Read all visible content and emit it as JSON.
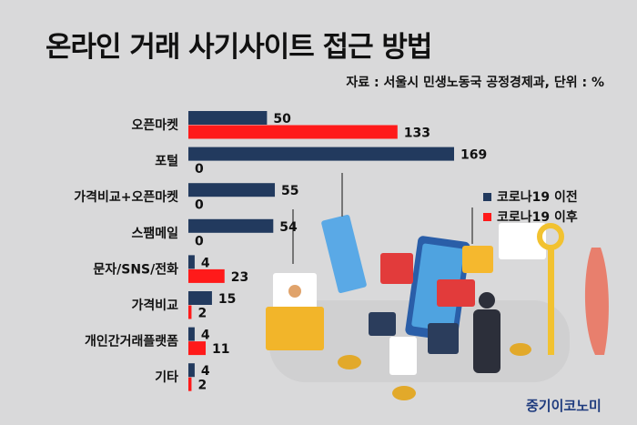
{
  "title": "온라인 거래 사기사이트 접근 방법",
  "source": "자료 : 서울시 민생노동국 공정경제과, 단위 : %",
  "brand": "중기이코노미",
  "colors": {
    "before": "#223a5e",
    "after": "#ff1a1a"
  },
  "chart_data": {
    "type": "bar",
    "orientation": "horizontal",
    "categories": [
      "오픈마켓",
      "포털",
      "가격비교+오픈마켓",
      "스팸메일",
      "문자/SNS/전화",
      "가격비교",
      "개인간거래플랫폼",
      "기타"
    ],
    "series": [
      {
        "name": "코로나19 이전",
        "values": [
          50,
          169,
          55,
          54,
          4,
          15,
          4,
          4
        ]
      },
      {
        "name": "코로나19 이후",
        "values": [
          133,
          0,
          0,
          0,
          23,
          2,
          11,
          2
        ]
      }
    ],
    "xlim": [
      0,
      169
    ],
    "legend_position": "right",
    "grid": false
  }
}
